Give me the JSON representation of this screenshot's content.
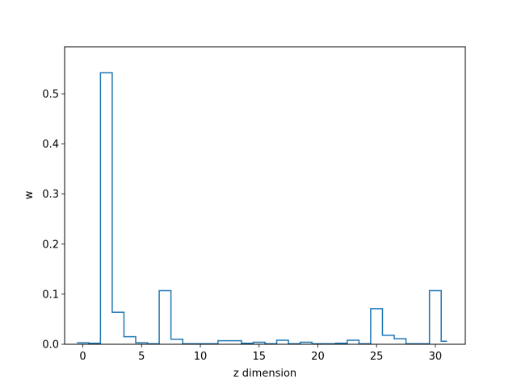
{
  "chart_data": {
    "type": "step",
    "title": "",
    "xlabel": "z dimension",
    "ylabel": "w",
    "xlim": [
      -1.55,
      32.55
    ],
    "ylim": [
      0,
      0.594
    ],
    "x": [
      0,
      1,
      2,
      3,
      4,
      5,
      6,
      7,
      8,
      9,
      10,
      11,
      12,
      13,
      14,
      15,
      16,
      17,
      18,
      19,
      20,
      21,
      22,
      23,
      24,
      25,
      26,
      27,
      28,
      29,
      30,
      31
    ],
    "values": [
      0.003,
      0.002,
      0.542,
      0.064,
      0.015,
      0.003,
      0.001,
      0.107,
      0.01,
      0.001,
      0.001,
      0.001,
      0.007,
      0.007,
      0.002,
      0.004,
      0.001,
      0.008,
      0.001,
      0.004,
      0.001,
      0.001,
      0.002,
      0.008,
      0.001,
      0.071,
      0.018,
      0.011,
      0.001,
      0.001,
      0.107,
      0.006
    ],
    "xticks": [
      0,
      5,
      10,
      15,
      20,
      25,
      30
    ],
    "yticks": [
      0.0,
      0.1,
      0.2,
      0.3,
      0.4,
      0.5
    ],
    "ytick_labels": [
      "0.0",
      "0.1",
      "0.2",
      "0.3",
      "0.4",
      "0.5"
    ],
    "grid": false,
    "colors": {
      "line": "#1f77b4",
      "axes": "#000000"
    }
  }
}
